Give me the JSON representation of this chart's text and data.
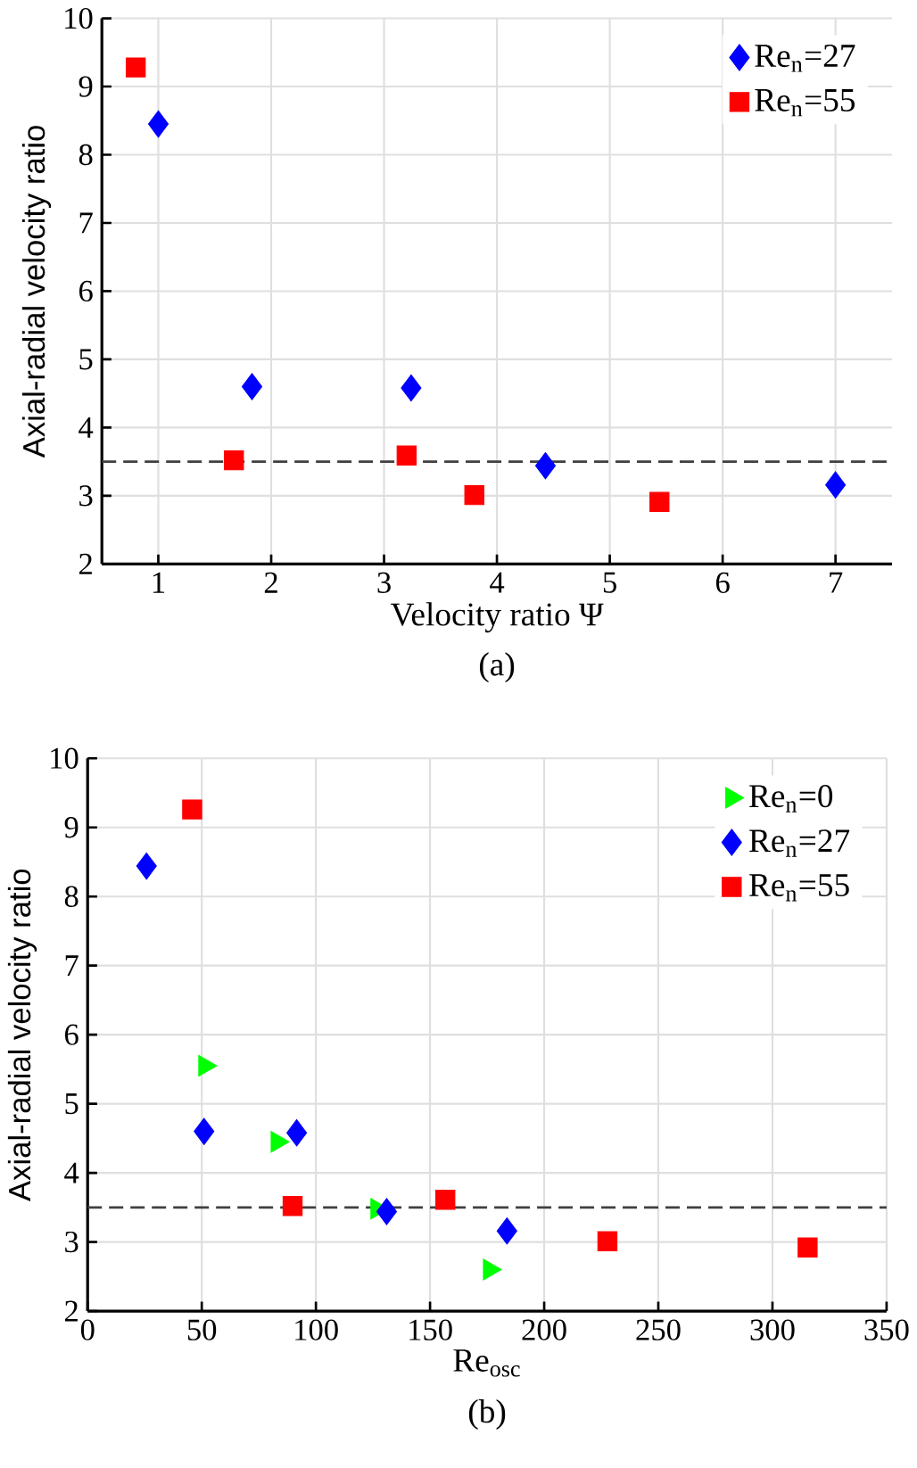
{
  "chart_data": [
    {
      "type": "scatter",
      "xlabel": "Velocity ratio  Ψ",
      "ylabel": "Axial-radial velocity ratio",
      "xlim": [
        0.5,
        7.5
      ],
      "xticks": [
        1,
        2,
        3,
        4,
        5,
        6,
        7
      ],
      "ylim": [
        2,
        10
      ],
      "yticks": [
        2,
        3,
        4,
        5,
        6,
        7,
        8,
        9,
        10
      ],
      "grid": true,
      "legend": "top right",
      "series": [
        {
          "name": "Re$_{n}$=27",
          "color": "#0000ff",
          "marker": "diamond",
          "x": [
            1.0,
            1.83,
            3.24,
            4.43,
            7.0
          ],
          "values": [
            8.45,
            4.6,
            4.58,
            3.44,
            3.16
          ]
        },
        {
          "name": "Re$_{n}$=55",
          "color": "#ff0000",
          "marker": "square",
          "x": [
            0.8,
            1.67,
            3.2,
            3.8,
            5.44
          ],
          "values": [
            9.28,
            3.52,
            3.59,
            3.01,
            2.91
          ]
        }
      ],
      "ref_lines": [
        {
          "axis": "y",
          "value": 3.5,
          "color": "#404040",
          "line_style": "dashed"
        }
      ],
      "annotations": [
        "(a)"
      ]
    },
    {
      "type": "scatter",
      "xlabel": "Re$_{osc}$",
      "ylabel": "Axial-radial velocity ratio",
      "xlim": [
        0,
        350
      ],
      "xticks": [
        0,
        50,
        100,
        150,
        200,
        250,
        300,
        350
      ],
      "ylim": [
        2,
        10
      ],
      "yticks": [
        2,
        3,
        4,
        5,
        6,
        7,
        8,
        9,
        10
      ],
      "grid": true,
      "legend": "top right",
      "series": [
        {
          "name": "Re$_{n}$=0",
          "color": "#00ff00",
          "marker": "triangle",
          "x": [
            51.3,
            83,
            126.7,
            176
          ],
          "values": [
            5.55,
            4.45,
            3.48,
            2.6
          ]
        },
        {
          "name": "Re$_{n}$=27",
          "color": "#0000ff",
          "marker": "diamond",
          "x": [
            25.8,
            51,
            91.6,
            131,
            183.7
          ],
          "values": [
            8.44,
            4.6,
            4.58,
            3.44,
            3.16
          ]
        },
        {
          "name": "Re$_{n}$=55",
          "color": "#ff0000",
          "marker": "square",
          "x": [
            45.8,
            89.8,
            156.7,
            227.7,
            315.4
          ],
          "values": [
            9.26,
            3.52,
            3.61,
            3.01,
            2.92
          ]
        }
      ],
      "ref_lines": [
        {
          "axis": "y",
          "value": 3.5,
          "color": "#404040",
          "line_style": "dashed"
        }
      ],
      "annotations": [
        "(b)"
      ]
    }
  ]
}
